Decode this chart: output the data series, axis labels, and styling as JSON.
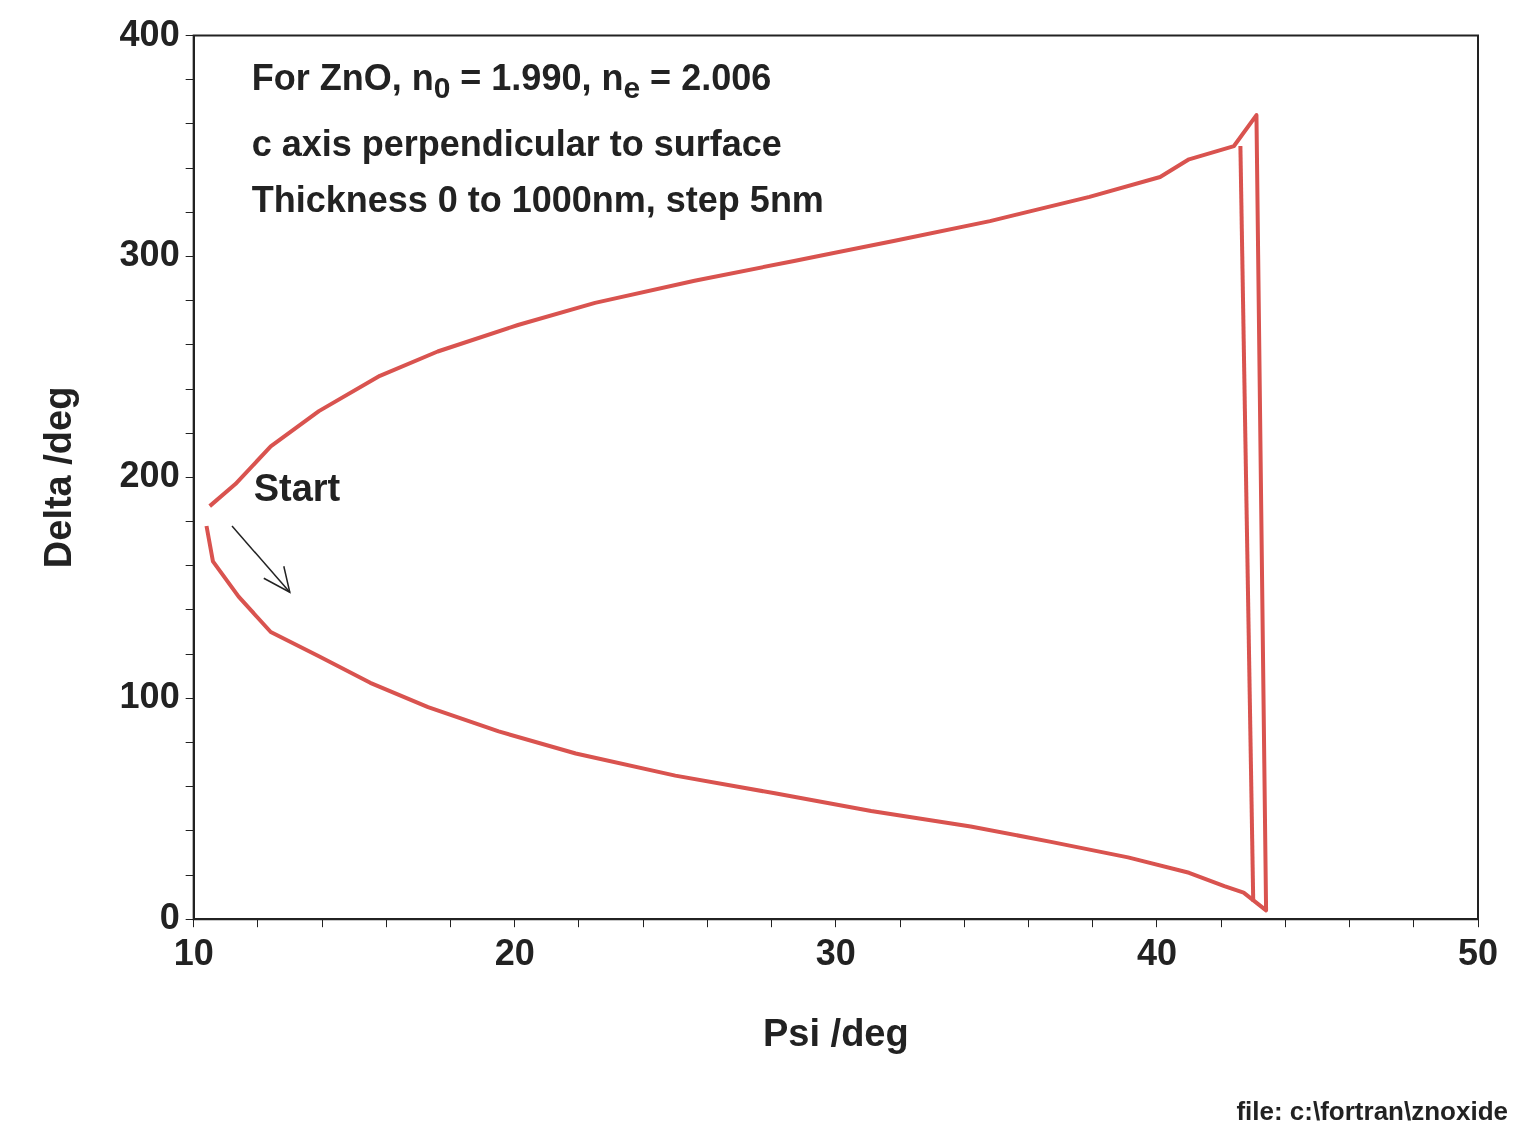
{
  "chart_data": {
    "type": "line",
    "xlabel": "Psi /deg",
    "ylabel": "Delta /deg",
    "xlim": [
      10,
      50
    ],
    "ylim": [
      0,
      400
    ],
    "xticks": [
      10,
      {
        "value": 12,
        "label": null
      },
      {
        "value": 14,
        "label": null
      },
      {
        "value": 16,
        "label": null
      },
      {
        "value": 18,
        "label": null
      },
      20,
      {
        "value": 22,
        "label": null
      },
      {
        "value": 24,
        "label": null
      },
      {
        "value": 26,
        "label": null
      },
      {
        "value": 28,
        "label": null
      },
      30,
      {
        "value": 32,
        "label": null
      },
      {
        "value": 34,
        "label": null
      },
      {
        "value": 36,
        "label": null
      },
      {
        "value": 38,
        "label": null
      },
      40,
      {
        "value": 42,
        "label": null
      },
      {
        "value": 44,
        "label": null
      },
      {
        "value": 46,
        "label": null
      },
      {
        "value": 48,
        "label": null
      },
      50
    ],
    "yticks": [
      0,
      {
        "value": 20,
        "label": null
      },
      {
        "value": 40,
        "label": null
      },
      {
        "value": 60,
        "label": null
      },
      {
        "value": 80,
        "label": null
      },
      100,
      {
        "value": 120,
        "label": null
      },
      {
        "value": 140,
        "label": null
      },
      {
        "value": 160,
        "label": null
      },
      {
        "value": 180,
        "label": null
      },
      200,
      {
        "value": 220,
        "label": null
      },
      {
        "value": 240,
        "label": null
      },
      {
        "value": 260,
        "label": null
      },
      {
        "value": 280,
        "label": null
      },
      300,
      {
        "value": 320,
        "label": null
      },
      {
        "value": 340,
        "label": null
      },
      {
        "value": 360,
        "label": null
      },
      {
        "value": 380,
        "label": null
      },
      400
    ],
    "grid": false,
    "legend": false,
    "marker": "none",
    "line_style": "solid",
    "series": [
      {
        "color": "#d9534f",
        "x": [
          10.4,
          10.6,
          11.4,
          12.4,
          13.9,
          15.5,
          17.3,
          19.5,
          21.9,
          25.0,
          28.1,
          31.1,
          34.2,
          36.7,
          39.1,
          41.0,
          42.1,
          42.7,
          43.4,
          43.1,
          42.4,
          41.0,
          40.1,
          37.9,
          34.8,
          31.8,
          28.7,
          25.6,
          22.5,
          20.1,
          17.6,
          15.8,
          13.9,
          12.4,
          11.3,
          10.5
        ],
        "values": [
          178,
          162,
          146,
          130,
          119,
          107,
          96,
          85,
          75,
          65,
          57,
          49,
          42,
          35,
          28,
          21,
          15,
          12,
          4,
          364,
          350,
          344,
          336,
          327,
          316,
          307,
          298,
          289,
          279,
          269,
          257,
          246,
          230,
          214,
          197,
          187
        ]
      },
      {
        "color": "#d9534f",
        "x": [
          42.6,
          43.0
        ],
        "values": [
          350,
          8
        ]
      }
    ],
    "annotations": [
      "For ZnO, n$_{0}$ = 1.990, n$_{e}$  = 2.006",
      "c axis perpendicular to surface",
      "Thickness 0 to 1000nm, step 5nm",
      "Start",
      "file: c:\\fortran\\znoxide"
    ]
  }
}
